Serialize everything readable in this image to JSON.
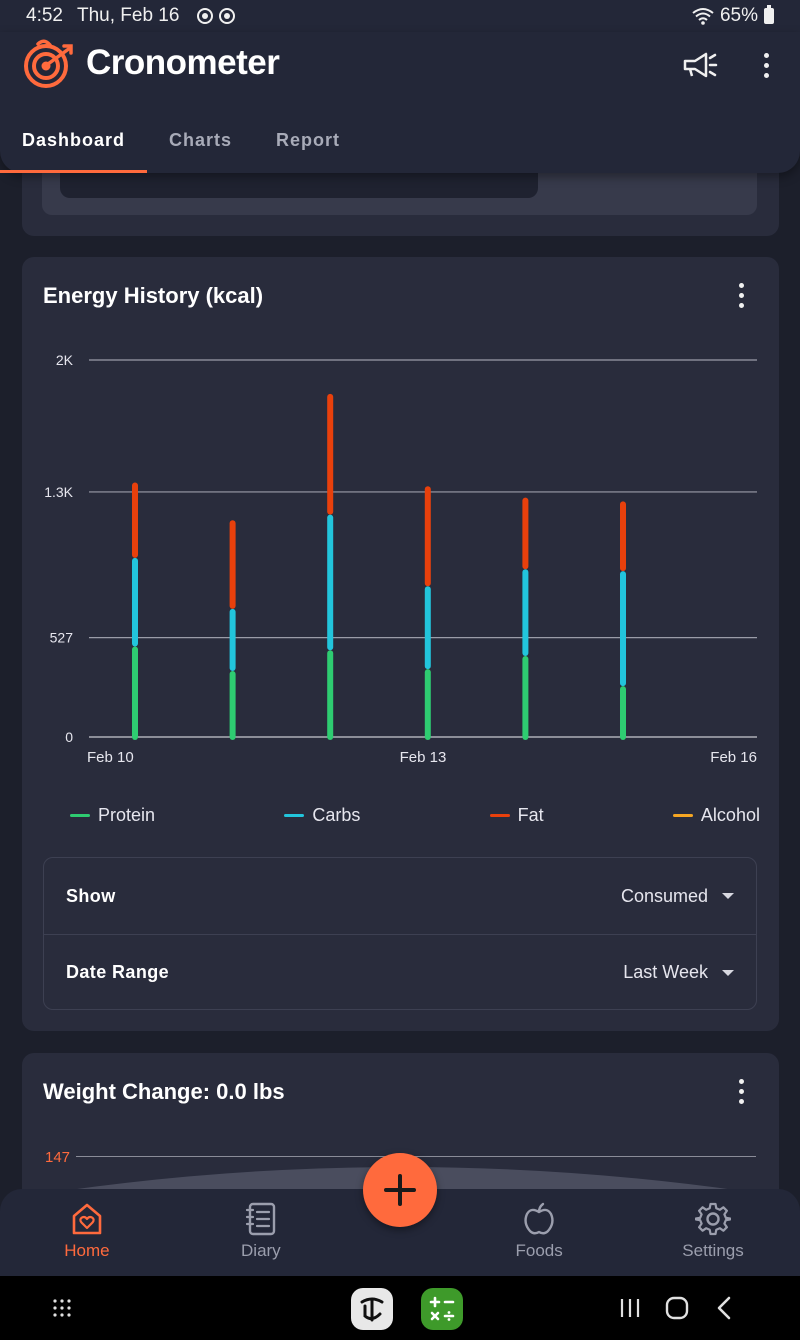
{
  "status_bar": {
    "time": "4:52",
    "date": "Thu, Feb 16",
    "battery": "65%"
  },
  "app": {
    "title": "Cronometer"
  },
  "tabs": [
    {
      "label": "Dashboard",
      "active": true
    },
    {
      "label": "Charts",
      "active": false
    },
    {
      "label": "Report",
      "active": false
    }
  ],
  "energy_card": {
    "title": "Energy History (kcal)",
    "legend": [
      {
        "name": "Protein",
        "color": "#2ecc71"
      },
      {
        "name": "Carbs",
        "color": "#22c5dc"
      },
      {
        "name": "Fat",
        "color": "#e8400c"
      },
      {
        "name": "Alcohol",
        "color": "#f5a623"
      }
    ],
    "options": [
      {
        "label": "Show",
        "value": "Consumed"
      },
      {
        "label": "Date Range",
        "value": "Last Week"
      }
    ]
  },
  "chart_data": {
    "type": "bar",
    "stacked_segments": true,
    "y_ticks": [
      {
        "label": "0",
        "value": 0
      },
      {
        "label": "527",
        "value": 527
      },
      {
        "label": "1.3K",
        "value": 1300
      },
      {
        "label": "2K",
        "value": 2000
      }
    ],
    "ylim": [
      0,
      2000
    ],
    "x_ticks": [
      "Feb 10",
      "Feb 13",
      "Feb 16"
    ],
    "categories": [
      "Feb 10",
      "Feb 11",
      "Feb 12",
      "Feb 13",
      "Feb 14",
      "Feb 15",
      "Feb 16"
    ],
    "grid": true,
    "series": [
      {
        "name": "Protein",
        "color": "#2ecc71",
        "values": [
          480,
          350,
          460,
          360,
          430,
          270,
          0
        ]
      },
      {
        "name": "Carbs",
        "color": "#22c5dc",
        "values": [
          470,
          330,
          720,
          440,
          460,
          610,
          0
        ]
      },
      {
        "name": "Fat",
        "color": "#e8400c",
        "values": [
          400,
          470,
          640,
          530,
          380,
          370,
          0
        ]
      },
      {
        "name": "Alcohol",
        "color": "#f5a623",
        "values": [
          0,
          0,
          0,
          0,
          0,
          0,
          0
        ]
      }
    ]
  },
  "weight_card": {
    "title": "Weight Change: 0.0 lbs",
    "tick": "147"
  },
  "bottom_nav": [
    {
      "label": "Home",
      "icon": "home-heart-icon",
      "active": true
    },
    {
      "label": "Diary",
      "icon": "notebook-icon",
      "active": false
    },
    {
      "label": "Foods",
      "icon": "apple-icon",
      "active": false
    },
    {
      "label": "Settings",
      "icon": "gear-icon",
      "active": false
    }
  ],
  "colors": {
    "accent": "#ff6a3d",
    "background": "#1c1f2b",
    "card": "#292c3c"
  }
}
